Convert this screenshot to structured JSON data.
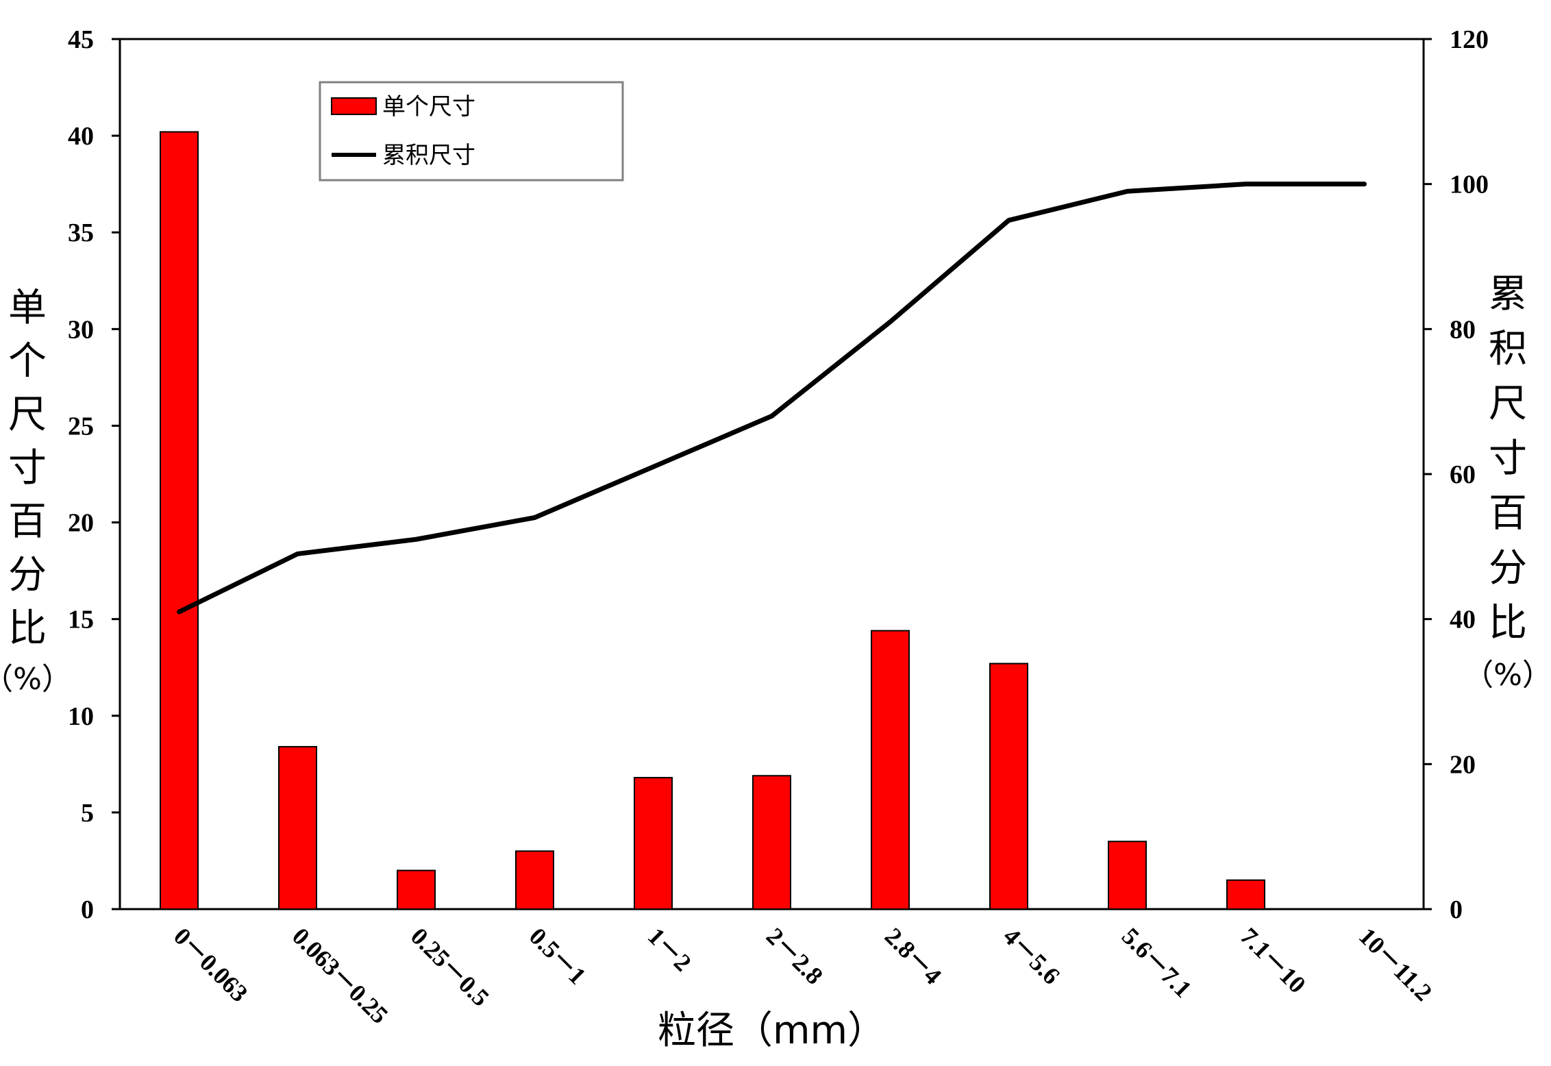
{
  "chart_data": {
    "type": "bar",
    "categories": [
      "0－0.063",
      "0.063－0.25",
      "0.25－0.5",
      "0.5－1",
      "1－2",
      "2－2.8",
      "2.8－4",
      "4－5.6",
      "5.6－7.1",
      "7.1－10",
      "10－11.2"
    ],
    "series": [
      {
        "name": "单个尺寸",
        "type": "bar",
        "axis": "left",
        "color": "#ff0000",
        "values": [
          40.2,
          8.4,
          2.0,
          3.0,
          6.8,
          6.9,
          14.4,
          12.7,
          3.5,
          1.5,
          0
        ]
      },
      {
        "name": "累积尺寸",
        "type": "line",
        "axis": "right",
        "color": "#000000",
        "values": [
          41,
          49,
          51,
          54,
          61,
          68,
          81,
          95,
          99,
          100,
          100
        ]
      }
    ],
    "xlabel": "粒径（mm）",
    "ylabel": "单个尺寸百分比（%）",
    "y2label": "累积尺寸百分比（%）",
    "ylim": [
      0,
      45
    ],
    "y2lim": [
      0,
      120
    ],
    "yticks": [
      "0",
      "5",
      "10",
      "15",
      "20",
      "25",
      "30",
      "35",
      "40",
      "45"
    ],
    "y2ticks": [
      "0",
      "20",
      "40",
      "60",
      "80",
      "100",
      "120"
    ],
    "grid": false,
    "legend_position": "top-left"
  }
}
